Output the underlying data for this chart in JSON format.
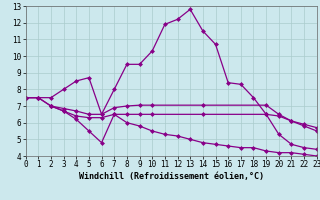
{
  "xlabel": "Windchill (Refroidissement éolien,°C)",
  "background_color": "#cce8ed",
  "line_color": "#880088",
  "grid_color": "#aacccc",
  "xlim": [
    0,
    23
  ],
  "ylim": [
    4,
    13
  ],
  "xticks": [
    0,
    1,
    2,
    3,
    4,
    5,
    6,
    7,
    8,
    9,
    10,
    11,
    12,
    13,
    14,
    15,
    16,
    17,
    18,
    19,
    20,
    21,
    22,
    23
  ],
  "yticks": [
    4,
    5,
    6,
    7,
    8,
    9,
    10,
    11,
    12,
    13
  ],
  "line1_x": [
    0,
    1,
    2,
    3,
    4,
    5,
    6,
    7,
    8,
    9,
    10,
    11,
    12,
    13,
    14,
    15,
    16,
    17,
    18,
    19,
    20,
    21,
    22,
    23
  ],
  "line1_y": [
    7.5,
    7.5,
    7.5,
    8.0,
    8.5,
    8.7,
    6.5,
    8.0,
    9.5,
    9.5,
    10.3,
    11.9,
    12.2,
    12.8,
    11.5,
    10.7,
    8.4,
    8.3,
    7.5,
    6.5,
    5.3,
    4.7,
    4.5,
    4.4
  ],
  "line2_x": [
    0,
    1,
    2,
    3,
    4,
    5,
    6,
    7,
    8,
    9,
    10,
    14,
    19,
    20,
    21,
    22,
    23
  ],
  "line2_y": [
    7.5,
    7.5,
    7.0,
    6.85,
    6.7,
    6.5,
    6.5,
    6.9,
    7.0,
    7.05,
    7.05,
    7.05,
    7.05,
    6.5,
    6.1,
    5.8,
    5.5
  ],
  "line3_x": [
    0,
    1,
    2,
    3,
    4,
    5,
    6,
    7,
    8,
    9,
    10,
    14,
    19,
    20,
    21,
    22,
    23
  ],
  "line3_y": [
    7.5,
    7.5,
    7.0,
    6.7,
    6.4,
    6.3,
    6.3,
    6.5,
    6.5,
    6.5,
    6.5,
    6.5,
    6.5,
    6.4,
    6.1,
    5.9,
    5.7
  ],
  "line4_x": [
    2,
    3,
    4,
    5,
    6,
    7,
    8,
    9,
    10,
    11,
    12,
    13,
    14,
    15,
    16,
    17,
    18,
    19,
    20,
    21,
    22,
    23
  ],
  "line4_y": [
    7.0,
    6.7,
    6.2,
    5.5,
    4.8,
    6.5,
    6.0,
    5.8,
    5.5,
    5.3,
    5.2,
    5.0,
    4.8,
    4.7,
    4.6,
    4.5,
    4.5,
    4.3,
    4.2,
    4.2,
    4.1,
    4.0
  ],
  "markersize": 2.5,
  "linewidth": 0.9,
  "tick_fontsize": 5.5,
  "label_fontsize": 6.0
}
